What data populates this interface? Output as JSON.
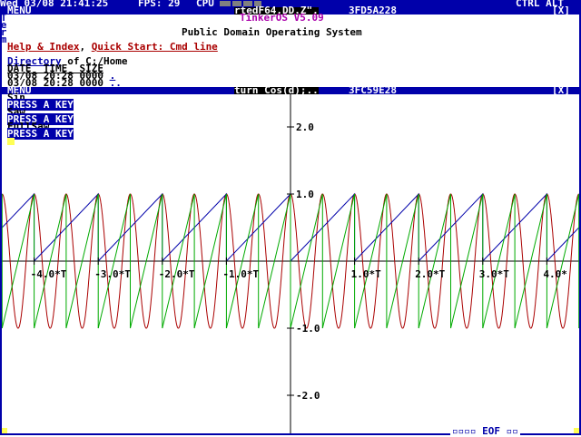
{
  "topbar": {
    "datetime": "Wed 03/08 21:41:25",
    "fps": "FPS: 29",
    "cpu": "CPU",
    "ctrl_alt": "CTRL ALT"
  },
  "term1": {
    "menu": "MENU",
    "tab_label": "rtedF64.DD.Z\".",
    "task_addr": "3FD5A228",
    "close": "[X]",
    "os_title": "TinkerOS V5.09",
    "os_subtitle": "Public Domain Operating System",
    "help_link": "Help & Index",
    "sep": ",",
    "quick_link": "Quick Start: Cmd line",
    "dir_link": "Directory",
    "dir_rest": " of C:/Home",
    "col_header": "DATE_ TIME_ SIZE",
    "rows": [
      {
        "date": "03/08",
        "time": "20:28",
        "size": "0000",
        "name": "."
      },
      {
        "date": "03/08",
        "time": "20:28",
        "size": "0000",
        "name": ".."
      }
    ]
  },
  "side_label": "Term",
  "term2": {
    "menu": "MENU",
    "title": "turn Cos(d);..",
    "task_addr": "3FC59E28",
    "close": "[X]",
    "lines": [
      {
        "text": "Sin",
        "style": "plain"
      },
      {
        "text": "PRESS A KEY",
        "style": "inv"
      },
      {
        "text": "Saw",
        "style": "plain"
      },
      {
        "text": "PRESS A KEY",
        "style": "inv"
      },
      {
        "text": "FullSaw",
        "style": "plain"
      },
      {
        "text": "PRESS A KEY",
        "style": "inv"
      }
    ],
    "bottom": "▫▫▫▫ EOF ▫▫"
  },
  "chart_data": {
    "type": "line",
    "title": "",
    "xlim": [
      -4.5,
      4.5
    ],
    "ylim": [
      -2.5,
      2.5
    ],
    "x_unit": "T",
    "x_ticks": [
      {
        "v": -4,
        "label": "-4.0*T"
      },
      {
        "v": -3,
        "label": "-3.0*T"
      },
      {
        "v": -2,
        "label": "-2.0*T"
      },
      {
        "v": -1,
        "label": "-1.0*T"
      },
      {
        "v": 1,
        "label": "1.0*T"
      },
      {
        "v": 2,
        "label": "2.0*T"
      },
      {
        "v": 3,
        "label": "3.0*T"
      },
      {
        "v": 4,
        "label": "4.0*"
      }
    ],
    "y_ticks": [
      {
        "v": 2,
        "label": "2.0"
      },
      {
        "v": 1,
        "label": "1.0"
      },
      {
        "v": -1,
        "label": "-1.0"
      },
      {
        "v": -2,
        "label": "-2.0"
      }
    ],
    "series": [
      {
        "kind": "sin",
        "color": "#aa0000",
        "period": 0.5,
        "amplitude": 1
      },
      {
        "kind": "saw",
        "color": "#0000aa",
        "period": 1,
        "min": 0,
        "max": 1
      },
      {
        "kind": "fullsaw",
        "color": "#00aa00",
        "period": 0.5,
        "min": -1,
        "max": 1
      }
    ]
  },
  "colors": {
    "accent": "#0000aa",
    "sin": "#aa0000",
    "saw": "#0000aa",
    "fullsaw": "#00aa00",
    "cursor": "#ffff55"
  }
}
